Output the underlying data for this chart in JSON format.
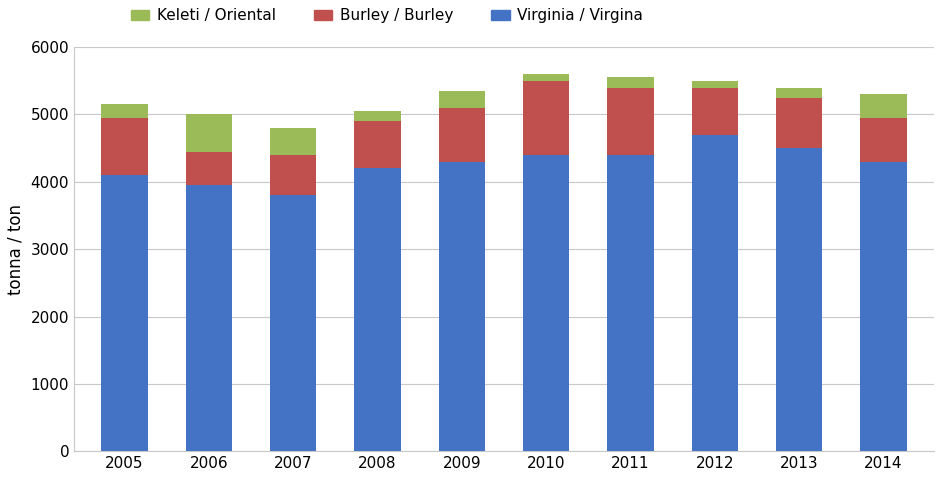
{
  "years": [
    "2005",
    "2006",
    "2007",
    "2008",
    "2009",
    "2010",
    "2011",
    "2012",
    "2013",
    "2014"
  ],
  "virginia": [
    4100,
    3950,
    3800,
    4200,
    4300,
    4400,
    4400,
    4700,
    4500,
    4300
  ],
  "burley": [
    850,
    500,
    600,
    700,
    800,
    1100,
    1000,
    700,
    750,
    650
  ],
  "keleti": [
    200,
    550,
    400,
    150,
    250,
    100,
    150,
    100,
    150,
    350
  ],
  "color_virginia": "#4472C4",
  "color_burley": "#C0504D",
  "color_keleti": "#9BBB59",
  "ylabel": "tonna / ton",
  "ylim": [
    0,
    6000
  ],
  "yticks": [
    0,
    1000,
    2000,
    3000,
    4000,
    5000,
    6000
  ],
  "legend_labels": [
    "Keleti / Oriental",
    "Burley / Burley",
    "Virginia / Virgina"
  ],
  "bar_width": 0.55,
  "grid_color": "#C8C8C8",
  "spine_color": "#C8C8C8",
  "background_color": "#FFFFFF",
  "tick_fontsize": 11,
  "ylabel_fontsize": 12,
  "legend_fontsize": 11
}
